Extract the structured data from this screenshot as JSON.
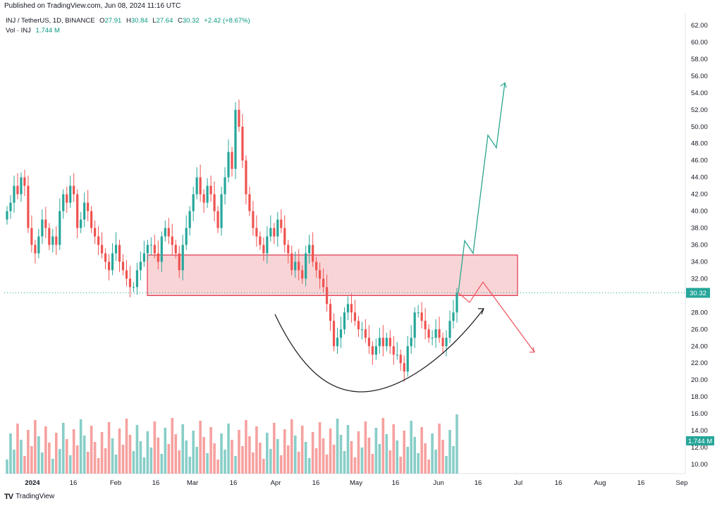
{
  "header": {
    "published": "Published on TradingView.com, Jun 08, 2024 11:16 UTC"
  },
  "legend": {
    "symbol": "INJ / TetherUS, 1D, BINANCE",
    "o_label": "O",
    "o": "27.91",
    "h_label": "H",
    "h": "30.84",
    "l_label": "L",
    "l": "27.64",
    "c_label": "C",
    "c": "30.32",
    "change": "+2.42 (+8.67%)",
    "vol_label": "Vol · INJ",
    "vol": "1.744 M"
  },
  "footer": {
    "brand": "TradingView",
    "logo": "tradingview-logo"
  },
  "colors": {
    "up": "#26a69a",
    "down": "#ef5350",
    "zone_fill": "#f7c6c9",
    "zone_stroke": "#e0334b",
    "up_arrow": "#2aa58f",
    "down_arrow": "#f05a63"
  },
  "chart_data": {
    "type": "candlestick",
    "title": "INJ / TetherUS, 1D, BINANCE",
    "price_axis": {
      "min": 10,
      "max": 62,
      "ticks": [
        "62.00",
        "60.00",
        "58.00",
        "56.00",
        "54.00",
        "52.00",
        "50.00",
        "48.00",
        "46.00",
        "44.00",
        "42.00",
        "40.00",
        "38.00",
        "36.00",
        "34.00",
        "32.00",
        "30.00",
        "28.00",
        "26.00",
        "24.00",
        "22.00",
        "20.00",
        "18.00",
        "16.00",
        "14.00",
        "12.00",
        "10.00"
      ]
    },
    "time_axis": {
      "ticks": [
        "2024",
        "16",
        "Feb",
        "16",
        "Mar",
        "16",
        "Apr",
        "16",
        "May",
        "16",
        "Jun",
        "16",
        "Jul",
        "16",
        "Aug",
        "16",
        "Sep"
      ]
    },
    "last_price": "30.32",
    "last_volume_label": "1.744 M",
    "resistance_zone": {
      "top": 34.8,
      "bottom": 30.0
    },
    "candles_c": [
      40,
      41,
      43,
      42,
      44,
      43,
      38,
      36,
      35,
      37,
      39,
      38,
      36,
      37,
      36,
      40,
      42,
      41,
      43,
      42,
      38,
      39,
      41,
      40,
      38,
      37,
      36,
      35,
      34,
      33,
      35,
      36,
      34,
      33,
      32,
      31,
      31,
      33,
      34,
      35,
      36,
      36,
      35,
      34,
      37,
      38,
      37,
      36,
      35,
      33,
      36,
      38,
      40,
      42,
      44,
      42,
      41,
      43,
      42,
      40,
      38,
      42,
      44,
      47,
      45,
      52,
      50,
      46,
      42,
      40,
      38,
      37,
      36,
      35,
      37,
      38,
      37,
      39,
      38,
      36,
      35,
      33,
      34,
      33,
      32,
      35,
      36,
      34,
      33,
      32,
      31,
      29,
      27,
      24,
      25,
      26,
      28,
      29,
      28,
      27,
      26,
      26,
      25,
      24,
      23,
      24,
      25,
      24,
      25,
      24,
      23,
      23,
      22,
      21,
      24,
      25,
      28,
      28,
      27,
      26,
      25,
      25,
      26,
      25,
      24,
      25,
      27,
      28,
      30.32
    ],
    "path_curve": "cup shape from Apr to Jun",
    "projection_up": [
      30.32,
      36.5,
      35,
      49,
      47.5,
      55.2
    ],
    "projection_down": [
      30.32,
      29.2,
      31.6,
      23.3
    ]
  }
}
